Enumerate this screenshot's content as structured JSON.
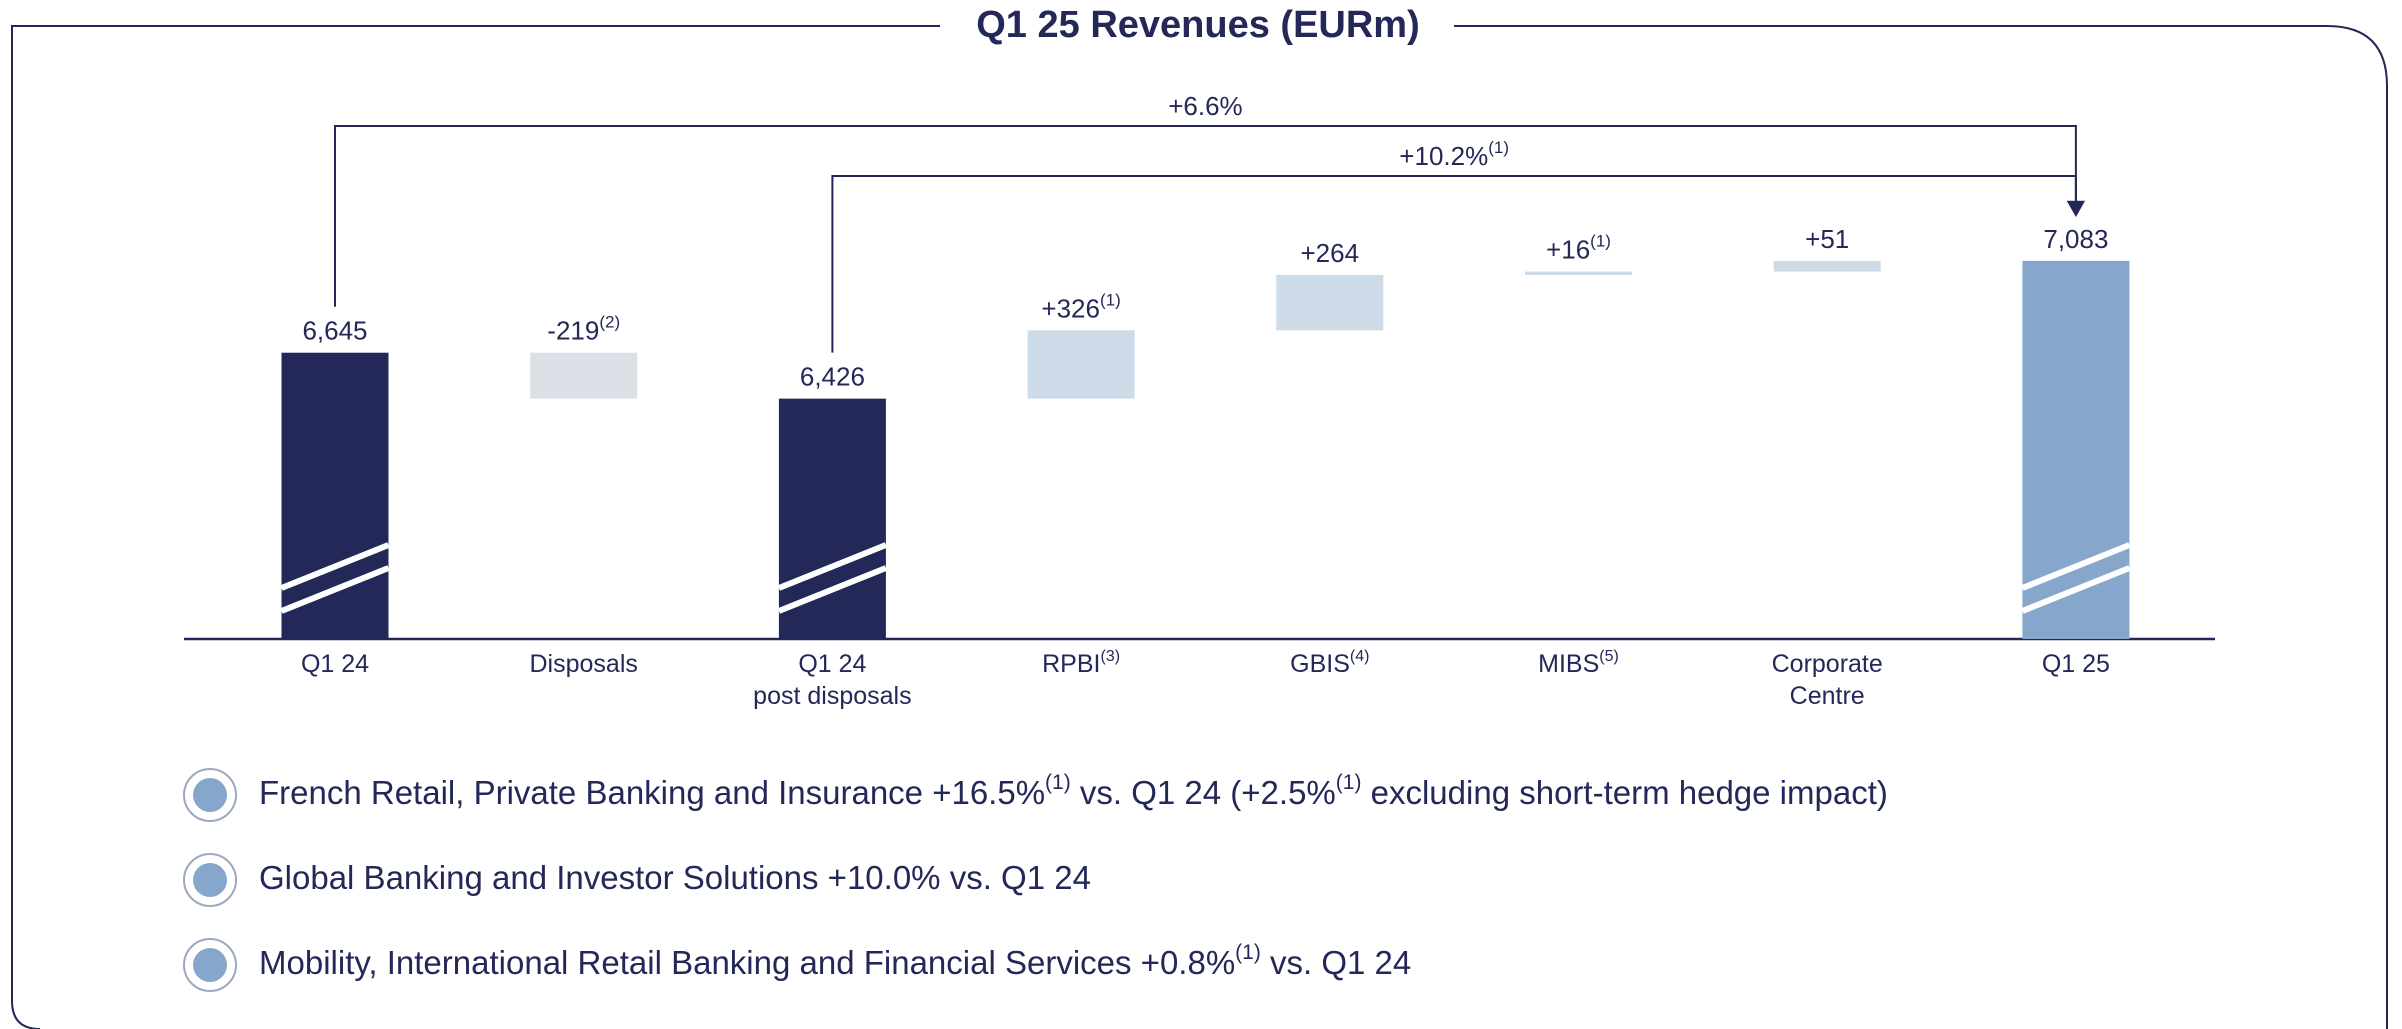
{
  "title": "Q1 25 Revenues (EURm)",
  "chart_data": {
    "type": "waterfall",
    "categories": [
      [
        "Q1 24"
      ],
      [
        "Disposals"
      ],
      [
        "Q1 24",
        "post disposals"
      ],
      [
        "RPBI"
      ],
      [
        "GBIS"
      ],
      [
        "MIBS"
      ],
      [
        "Corporate",
        "Centre"
      ],
      [
        "Q1 25"
      ]
    ],
    "category_notes": [
      null,
      null,
      null,
      "(3)",
      "(4)",
      "(5)",
      null,
      null
    ],
    "values": [
      6645,
      -219,
      6426,
      326,
      264,
      16,
      51,
      7083
    ],
    "value_labels": [
      "6,645",
      "-219",
      "6,426",
      "+326",
      "+264",
      "+16",
      "+51",
      "7,083"
    ],
    "value_label_notes": [
      null,
      "(2)",
      null,
      "(1)",
      null,
      "(1)",
      null,
      null
    ],
    "bar_kinds": [
      "total",
      "delta",
      "total",
      "delta",
      "delta",
      "delta",
      "delta",
      "total"
    ],
    "colors": [
      "#232858",
      "#dcdfe6",
      "#232858",
      "#cddbe8",
      "#cddbe8",
      "#cddbe8",
      "#cddbe8",
      "#86a6cb"
    ],
    "axis_break": true,
    "ylim": [
      5280,
      7850
    ],
    "annotations": [
      {
        "text": "+6.6%",
        "from": 0,
        "to": 7
      },
      {
        "text": "+10.2%",
        "note": "(1)",
        "from": 2,
        "to": 7
      }
    ]
  },
  "bullets": [
    [
      {
        "text": "French Retail, Private Banking and Insurance +16.5%"
      },
      {
        "text": "(1)",
        "sup": true
      },
      {
        "text": " vs. Q1 24 (+2.5%"
      },
      {
        "text": "(1)",
        "sup": true
      },
      {
        "text": " excluding short-term hedge impact)"
      }
    ],
    [
      {
        "text": "Global Banking and Investor Solutions +10.0% vs. Q1 24"
      }
    ],
    [
      {
        "text": "Mobility, International Retail Banking and Financial Services +0.8%"
      },
      {
        "text": "(1)",
        "sup": true
      },
      {
        "text": " vs. Q1 24"
      }
    ]
  ]
}
